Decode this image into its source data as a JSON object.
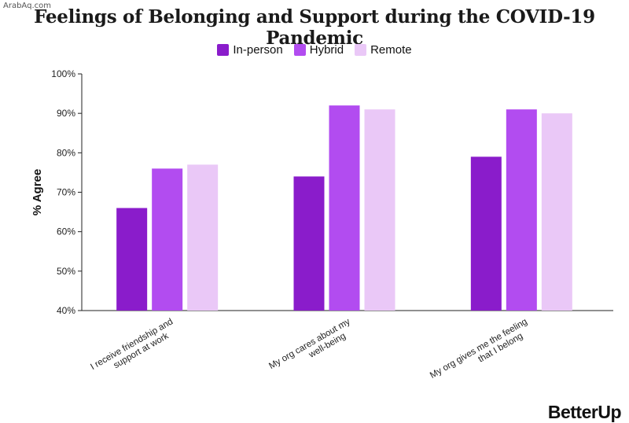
{
  "watermark": "ArabAq.com",
  "brand": "BetterUp",
  "chart_data": {
    "type": "bar",
    "title": "Feelings of Belonging and Support during the COVID-19 Pandemic",
    "ylabel": "% Agree",
    "xlabel": "",
    "ylim": [
      40,
      100
    ],
    "yticks": [
      40,
      50,
      60,
      70,
      80,
      90,
      100
    ],
    "ytick_labels": [
      "40%",
      "50%",
      "60%",
      "70%",
      "80%",
      "90%",
      "100%"
    ],
    "legend_position": "top-center",
    "grid": false,
    "categories": [
      [
        "I receive friendship and",
        "support at work"
      ],
      [
        "My org cares about my",
        "well-being"
      ],
      [
        "My org gives me the feeling",
        "that I belong"
      ]
    ],
    "series": [
      {
        "name": "In-person",
        "color": "#8a1ccb",
        "values": [
          66,
          74,
          79
        ]
      },
      {
        "name": "Hybrid",
        "color": "#b24cf0",
        "values": [
          76,
          92,
          91
        ]
      },
      {
        "name": "Remote",
        "color": "#eac8f7",
        "values": [
          77,
          91,
          90
        ]
      }
    ]
  }
}
